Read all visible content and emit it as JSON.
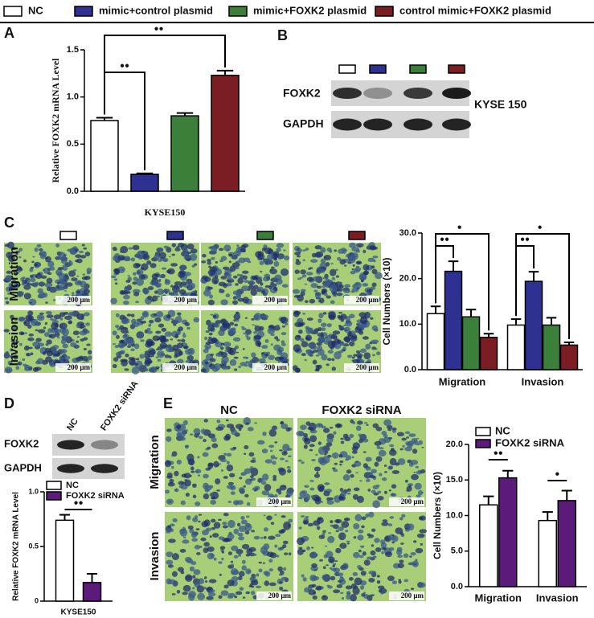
{
  "legend": [
    {
      "label": "NC",
      "color": "#ffffff"
    },
    {
      "label": "mimic+control plasmid",
      "color": "#2e3192"
    },
    {
      "label": "mimic+FOXK2 plasmid",
      "color": "#3b7f3b"
    },
    {
      "label": "control mimic+FOXK2 plasmid",
      "color": "#7b1e24"
    }
  ],
  "panel_labels": [
    "A",
    "B",
    "C",
    "D",
    "E"
  ],
  "panel_b": {
    "bands": [
      "FOXK2",
      "GAPDH"
    ],
    "cell_line": "KYSE 150"
  },
  "panel_c": {
    "rows": [
      "Migration",
      "Invasion"
    ],
    "scale_labels": [
      "200 µm",
      "200 µm",
      "200 µm",
      "200 µm",
      "200 µm",
      "200 µm",
      "200 µm",
      "200 µm"
    ]
  },
  "panel_d": {
    "lanes": [
      "NC",
      "FOXK2 siRNA"
    ],
    "bands": [
      "FOXK2",
      "GAPDH"
    ]
  },
  "panel_e": {
    "columns": [
      "NC",
      "FOXK2 siRNA"
    ],
    "rows": [
      "Migration",
      "Invasion"
    ],
    "scale_labels": [
      "200 µm",
      "200 µm",
      "200 µm",
      "200 µm"
    ]
  },
  "chart_data": [
    {
      "type": "bar",
      "ylabel": "Relative FOXK2 mRNA Level",
      "xlabel": "KYSE150",
      "categories": [
        null
      ],
      "series": [
        {
          "color": "#ffffff",
          "values": [
            0.75
          ],
          "errors": [
            0.03
          ]
        },
        {
          "color": "#2e3192",
          "values": [
            0.18
          ],
          "errors": [
            0.01
          ]
        },
        {
          "color": "#3b7f3b",
          "values": [
            0.8
          ],
          "errors": [
            0.03
          ]
        },
        {
          "color": "#7b1e24",
          "values": [
            1.23
          ],
          "errors": [
            0.05
          ]
        }
      ],
      "ylim": [
        0,
        1.5
      ],
      "yticks": [
        {
          "value": 0,
          "label": "0.0"
        },
        0.5,
        {
          "value": 1,
          "label": "1.0"
        },
        1.5
      ],
      "annotations": [
        "●●",
        "●●"
      ]
    },
    {
      "type": "bar",
      "ylabel": "Cell Numbers (×10)",
      "categories": [
        "Migration",
        "Invasion"
      ],
      "series": [
        {
          "color": "#ffffff",
          "values": [
            12.3,
            9.8
          ],
          "errors": [
            1.6,
            1.3
          ]
        },
        {
          "color": "#2e3192",
          "values": [
            21.6,
            19.4
          ],
          "errors": [
            2.2,
            2.1
          ]
        },
        {
          "color": "#3b7f3b",
          "values": [
            11.6,
            9.8
          ],
          "errors": [
            1.6,
            1.6
          ]
        },
        {
          "color": "#7b1e24",
          "values": [
            7.1,
            5.4
          ],
          "errors": [
            0.8,
            0.6
          ]
        }
      ],
      "ylim": [
        0,
        30
      ],
      "yticks": [
        {
          "value": 0,
          "label": "0.0"
        },
        {
          "value": 10,
          "label": "10.0"
        },
        {
          "value": 20,
          "label": "20.0"
        },
        {
          "value": 30,
          "label": "30.0"
        }
      ],
      "annotations": [
        "●●",
        "●",
        "●●",
        "●"
      ]
    },
    {
      "type": "bar",
      "ylabel": "Relative FOXK2 mRNA Level",
      "xlabel": "KYSE150",
      "categories": [
        null
      ],
      "series": [
        {
          "name": "NC",
          "color": "#ffffff",
          "values": [
            0.74
          ],
          "errors": [
            0.05
          ]
        },
        {
          "name": "FOXK2 siRNA",
          "color": "#5c1a7a",
          "values": [
            0.17
          ],
          "errors": [
            0.08
          ]
        }
      ],
      "ylim": [
        0,
        1
      ],
      "yticks": [
        0,
        0.5,
        {
          "value": 1,
          "label": "1.0"
        }
      ],
      "annotations": [
        "●●"
      ]
    },
    {
      "type": "bar",
      "ylabel": "Cell Numbers (×10)",
      "categories": [
        "Migration",
        "Invasion"
      ],
      "series": [
        {
          "name": "NC",
          "color": "#ffffff",
          "values": [
            11.5,
            9.3
          ],
          "errors": [
            1.2,
            1.2
          ]
        },
        {
          "name": "FOXK2 siRNA",
          "color": "#5c1a7a",
          "values": [
            15.3,
            12.1
          ],
          "errors": [
            1.0,
            1.4
          ]
        }
      ],
      "ylim": [
        0,
        20
      ],
      "yticks": [
        {
          "value": 0,
          "label": "0.0"
        },
        {
          "value": 5,
          "label": "5.0"
        },
        {
          "value": 10,
          "label": "10.0"
        },
        {
          "value": 15,
          "label": "15.0"
        },
        {
          "value": 20,
          "label": "20.0"
        }
      ],
      "annotations": [
        "●●",
        "●"
      ]
    }
  ]
}
